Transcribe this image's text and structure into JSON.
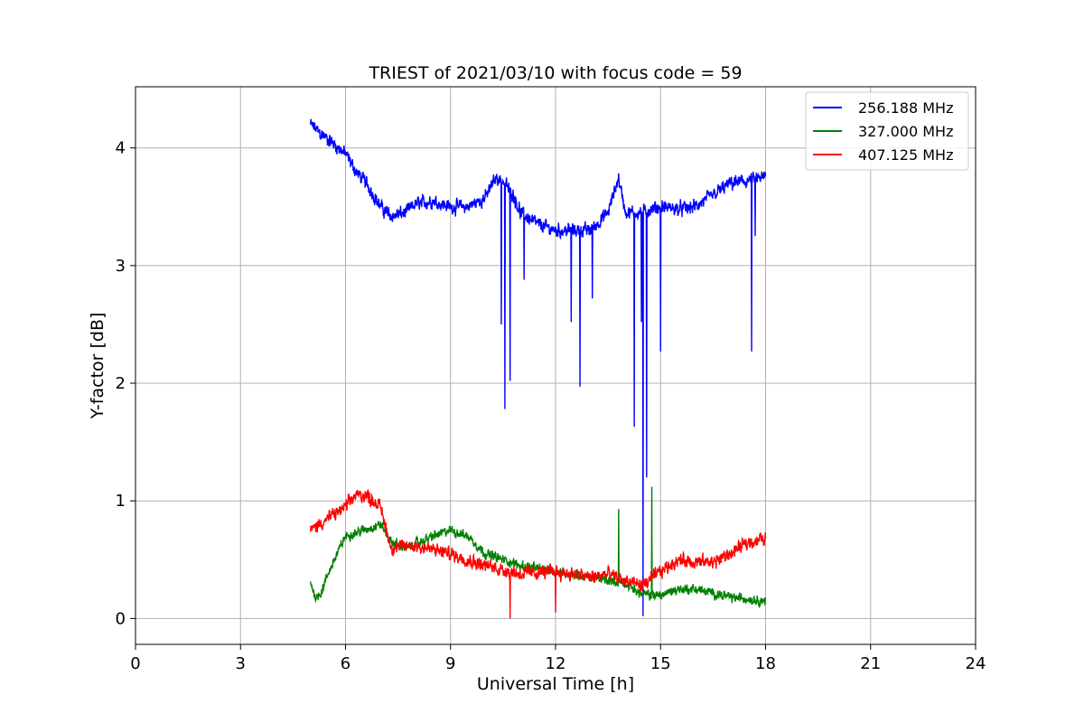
{
  "chart_data": {
    "type": "line",
    "title": "TRIEST of 2021/03/10 with focus code = 59",
    "xlabel": "Universal Time [h]",
    "ylabel": "Y-factor [dB]",
    "xlim": [
      0,
      24
    ],
    "ylim": [
      -0.22,
      4.52
    ],
    "xticks": [
      0,
      3,
      6,
      9,
      12,
      15,
      18,
      21,
      24
    ],
    "yticks": [
      0,
      1,
      2,
      3,
      4
    ],
    "grid": true,
    "legend_position": "top-right",
    "series": [
      {
        "name": "256.188 MHz",
        "color": "#0000ff",
        "noise": 0.07,
        "x": [
          5.0,
          5.3,
          5.6,
          6.0,
          6.3,
          6.6,
          7.0,
          7.3,
          7.7,
          8.0,
          8.5,
          9.0,
          9.5,
          10.0,
          10.3,
          10.5,
          10.8,
          11.0,
          11.5,
          12.0,
          12.5,
          13.0,
          13.5,
          13.8,
          14.0,
          14.5,
          15.0,
          15.5,
          16.0,
          16.5,
          17.0,
          17.5,
          18.0
        ],
        "y": [
          4.2,
          4.12,
          4.05,
          3.95,
          3.8,
          3.7,
          3.5,
          3.42,
          3.45,
          3.52,
          3.55,
          3.5,
          3.5,
          3.58,
          3.75,
          3.72,
          3.6,
          3.45,
          3.35,
          3.3,
          3.3,
          3.3,
          3.45,
          3.75,
          3.45,
          3.45,
          3.5,
          3.48,
          3.5,
          3.6,
          3.7,
          3.72,
          3.75
        ],
        "spikes": [
          {
            "x": 10.45,
            "y": 2.5
          },
          {
            "x": 10.55,
            "y": 1.78
          },
          {
            "x": 10.7,
            "y": 2.02
          },
          {
            "x": 11.1,
            "y": 2.88
          },
          {
            "x": 12.45,
            "y": 2.52
          },
          {
            "x": 12.7,
            "y": 1.97
          },
          {
            "x": 13.05,
            "y": 2.72
          },
          {
            "x": 14.25,
            "y": 1.63
          },
          {
            "x": 14.45,
            "y": 2.52
          },
          {
            "x": 14.5,
            "y": 0.02
          },
          {
            "x": 14.6,
            "y": 1.2
          },
          {
            "x": 15.0,
            "y": 2.27
          },
          {
            "x": 17.6,
            "y": 2.27
          },
          {
            "x": 17.7,
            "y": 3.25
          }
        ]
      },
      {
        "name": "327.000 MHz",
        "color": "#008000",
        "noise": 0.05,
        "x": [
          5.0,
          5.15,
          5.3,
          5.6,
          6.0,
          6.5,
          7.0,
          7.3,
          7.8,
          8.5,
          9.0,
          9.5,
          10.0,
          11.0,
          12.0,
          13.0,
          14.0,
          14.5,
          15.0,
          15.5,
          16.0,
          17.0,
          18.0
        ],
        "y": [
          0.3,
          0.18,
          0.22,
          0.45,
          0.7,
          0.75,
          0.8,
          0.65,
          0.6,
          0.7,
          0.75,
          0.7,
          0.55,
          0.45,
          0.4,
          0.35,
          0.3,
          0.2,
          0.2,
          0.25,
          0.25,
          0.18,
          0.15
        ],
        "spikes": [
          {
            "x": 13.8,
            "y": 0.93
          },
          {
            "x": 14.75,
            "y": 1.12
          }
        ]
      },
      {
        "name": "407.125 MHz",
        "color": "#ff0000",
        "noise": 0.07,
        "x": [
          5.0,
          5.5,
          6.0,
          6.3,
          6.6,
          7.0,
          7.3,
          8.0,
          9.0,
          10.0,
          11.0,
          12.0,
          13.0,
          13.5,
          14.0,
          14.5,
          15.0,
          15.5,
          16.0,
          16.5,
          17.0,
          17.5,
          18.0
        ],
        "y": [
          0.75,
          0.85,
          0.95,
          1.05,
          1.05,
          0.95,
          0.6,
          0.62,
          0.55,
          0.45,
          0.38,
          0.4,
          0.35,
          0.38,
          0.32,
          0.28,
          0.4,
          0.5,
          0.48,
          0.48,
          0.55,
          0.65,
          0.68
        ],
        "spikes": [
          {
            "x": 10.7,
            "y": 0.0
          },
          {
            "x": 12.0,
            "y": 0.05
          }
        ]
      }
    ]
  }
}
